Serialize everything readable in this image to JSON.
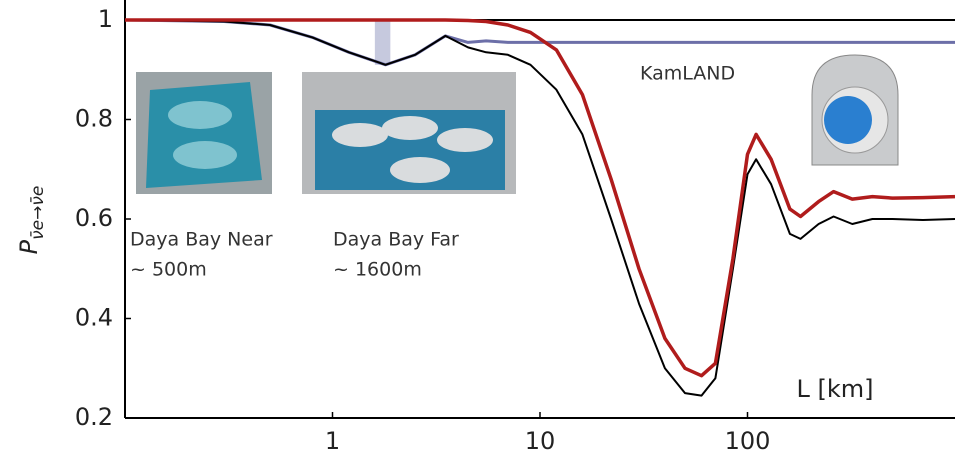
{
  "chart_data": {
    "type": "line",
    "ylabel": {
      "symbol": "P",
      "subscript": "ν̄e→ν̄e"
    },
    "xlabel": "L [km]",
    "log_x": true,
    "xlim": [
      0.1,
      1000
    ],
    "xticks": [
      1,
      10,
      100
    ],
    "ylim": [
      0.2,
      1
    ],
    "yticks": [
      0.2,
      0.4,
      0.6,
      0.8,
      1
    ],
    "x": [
      0.1,
      0.3,
      0.5,
      0.8,
      1.2,
      1.8,
      2.5,
      3.5,
      4.5,
      5.5,
      7,
      9,
      12,
      16,
      22,
      30,
      40,
      50,
      60,
      70,
      85,
      100,
      110,
      130,
      160,
      180,
      220,
      260,
      320,
      400,
      500,
      700,
      1000
    ],
    "series": [
      {
        "color": "#6c6fa8",
        "width": 3,
        "values": [
          1,
          0.997,
          0.99,
          0.965,
          0.935,
          0.91,
          0.93,
          0.968,
          0.955,
          0.958,
          0.955,
          0.955,
          0.955,
          0.955,
          0.955,
          0.955,
          0.955,
          0.955,
          0.955,
          0.955,
          0.955,
          0.955,
          0.955,
          0.955,
          0.955,
          0.955,
          0.955,
          0.955,
          0.955,
          0.955,
          0.955,
          0.955,
          0.955
        ]
      },
      {
        "color": "#000000",
        "width": 2,
        "values": [
          1,
          0.997,
          0.99,
          0.965,
          0.935,
          0.91,
          0.93,
          0.968,
          0.945,
          0.935,
          0.93,
          0.91,
          0.86,
          0.77,
          0.6,
          0.43,
          0.3,
          0.25,
          0.245,
          0.28,
          0.5,
          0.69,
          0.72,
          0.67,
          0.57,
          0.56,
          0.59,
          0.605,
          0.59,
          0.6,
          0.6,
          0.598,
          0.6
        ]
      },
      {
        "color": "#b01c1c",
        "width": 3.5,
        "values": [
          1,
          1,
          1,
          1,
          1,
          1,
          1,
          1,
          0.999,
          0.997,
          0.99,
          0.975,
          0.94,
          0.85,
          0.68,
          0.5,
          0.36,
          0.3,
          0.285,
          0.31,
          0.52,
          0.73,
          0.77,
          0.72,
          0.62,
          0.605,
          0.635,
          0.655,
          0.64,
          0.645,
          0.642,
          0.643,
          0.645
        ]
      }
    ],
    "band": {
      "x": [
        1.6,
        1.9
      ],
      "y": [
        0.91,
        1
      ],
      "color": "#c6c9de"
    },
    "annotations": [
      "Daya Bay Near",
      "~ 500m",
      "Daya Bay Far",
      "~ 1600m",
      "KamLAND"
    ]
  }
}
